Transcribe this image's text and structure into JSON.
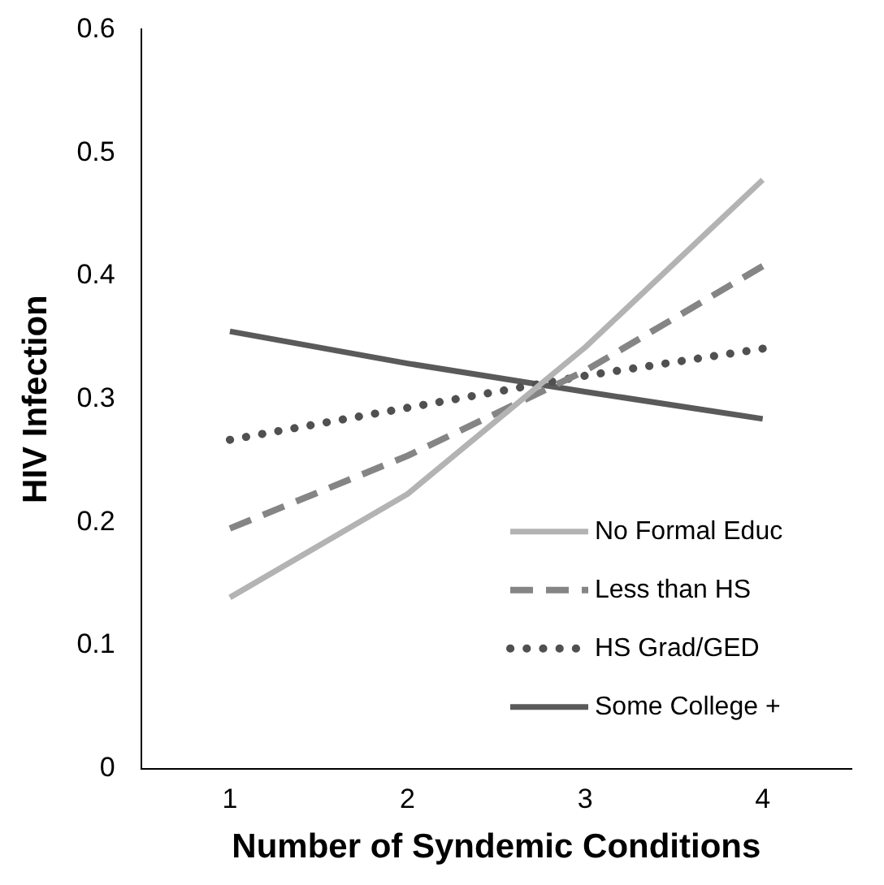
{
  "chart_data": {
    "type": "line",
    "xlabel": "Number of Syndemic Conditions",
    "ylabel": "HIV Infection",
    "categories": [
      "1",
      "2",
      "3",
      "4"
    ],
    "series": [
      {
        "name": "No Formal Educ",
        "color": "#b3b3b3",
        "line_style": "solid",
        "values": [
          0.139,
          0.223,
          0.342,
          0.478
        ]
      },
      {
        "name": "Less than HS",
        "color": "#858585",
        "line_style": "dashed",
        "values": [
          0.195,
          0.254,
          0.323,
          0.408
        ]
      },
      {
        "name": "HS Grad/GED",
        "color": "#505050",
        "line_style": "dotted",
        "values": [
          0.267,
          0.293,
          0.319,
          0.341
        ]
      },
      {
        "name": "Some College +",
        "color": "#5a5a5a",
        "line_style": "solid",
        "values": [
          0.355,
          0.329,
          0.306,
          0.284
        ]
      }
    ],
    "ylim": [
      0,
      0.6
    ],
    "yticks": [
      0,
      0.1,
      0.2,
      0.3,
      0.4,
      0.5,
      0.6
    ],
    "grid": false,
    "legend": "bottom right",
    "marker": "none"
  }
}
